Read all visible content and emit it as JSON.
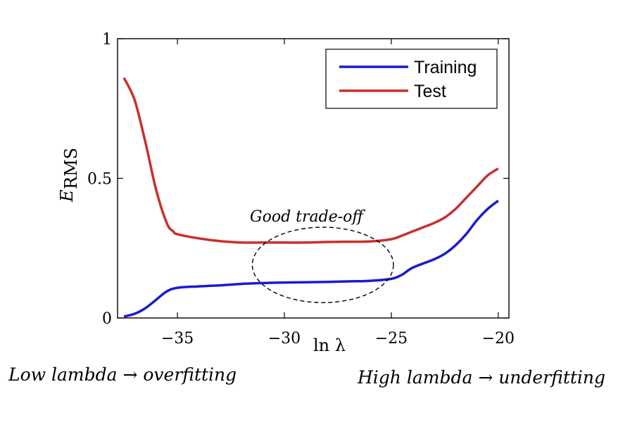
{
  "chart_data": {
    "type": "line",
    "xlabel": "ln λ",
    "ylabel": "E",
    "ylabel_sub": "RMS",
    "xlim": [
      -37.8,
      -19.5
    ],
    "ylim": [
      0,
      1
    ],
    "xticks": [
      -35,
      -30,
      -25,
      -20
    ],
    "xtick_labels": [
      "−35",
      "−30",
      "−25",
      "−20"
    ],
    "yticks": [
      0,
      0.5,
      1
    ],
    "ytick_labels": [
      "0",
      "0.5",
      "1"
    ],
    "grid": false,
    "legend_position": "top-right",
    "series": [
      {
        "name": "Training",
        "color": "#1a1ad0",
        "x": [
          -37.5,
          -37.0,
          -36.5,
          -36.0,
          -35.5,
          -35.0,
          -34.0,
          -33.0,
          -32.0,
          -31.0,
          -30.0,
          -29.0,
          -28.0,
          -27.0,
          -26.0,
          -25.0,
          -24.5,
          -24.0,
          -23.0,
          -22.5,
          -22.0,
          -21.5,
          -21.0,
          -20.5,
          -20.0
        ],
        "y": [
          0.005,
          0.015,
          0.035,
          0.065,
          0.095,
          0.108,
          0.113,
          0.117,
          0.122,
          0.125,
          0.127,
          0.128,
          0.129,
          0.131,
          0.133,
          0.14,
          0.155,
          0.18,
          0.21,
          0.23,
          0.26,
          0.3,
          0.35,
          0.39,
          0.42
        ]
      },
      {
        "name": "Test",
        "color": "#c8302a",
        "x": [
          -37.5,
          -37.0,
          -36.5,
          -36.0,
          -35.5,
          -35.2,
          -35.0,
          -34.0,
          -33.0,
          -32.0,
          -31.0,
          -30.0,
          -29.0,
          -28.0,
          -27.0,
          -26.0,
          -25.0,
          -24.5,
          -24.0,
          -23.5,
          -23.0,
          -22.5,
          -22.0,
          -21.5,
          -21.0,
          -20.5,
          -20.0
        ],
        "y": [
          0.86,
          0.78,
          0.63,
          0.46,
          0.34,
          0.31,
          0.3,
          0.285,
          0.275,
          0.27,
          0.27,
          0.27,
          0.27,
          0.272,
          0.273,
          0.274,
          0.282,
          0.295,
          0.31,
          0.325,
          0.34,
          0.36,
          0.39,
          0.43,
          0.47,
          0.51,
          0.535
        ]
      }
    ],
    "annotation": {
      "text": "Good trade-off",
      "ellipse_center": [
        -28.2,
        0.19
      ],
      "ellipse_radius": [
        3.3,
        0.135
      ]
    }
  },
  "captions": {
    "left": "Low lambda → overfitting",
    "right": "High lambda → underfitting"
  }
}
